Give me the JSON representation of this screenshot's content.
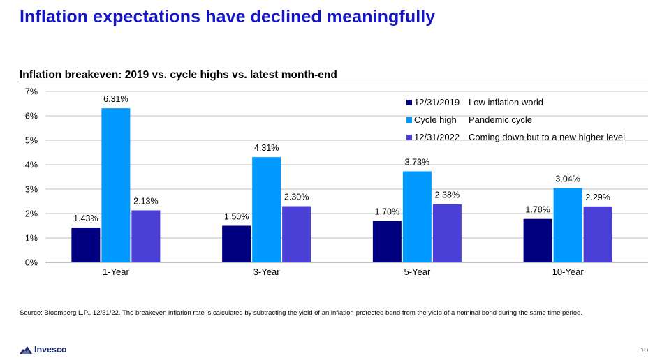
{
  "slide": {
    "title": "Inflation expectations have declined meaningfully",
    "source": "Source: Bloomberg L.P., 12/31/22. The breakeven inflation rate is calculated by subtracting the yield of an inflation-protected bond from the yield of a nominal bond during the same time period.",
    "logo_text": "Invesco",
    "page_number": "10"
  },
  "chart_data": {
    "type": "bar",
    "title": "Inflation breakeven: 2019 vs. cycle highs vs. latest month-end",
    "categories": [
      "1-Year",
      "3-Year",
      "5-Year",
      "10-Year"
    ],
    "series": [
      {
        "name": "12/31/2019",
        "description": "Low inflation world",
        "color": "#000080",
        "values": [
          1.43,
          1.5,
          1.7,
          1.78
        ],
        "labels": [
          "1.43%",
          "1.50%",
          "1.70%",
          "1.78%"
        ]
      },
      {
        "name": "Cycle high",
        "description": "Pandemic cycle",
        "color": "#0099ff",
        "values": [
          6.31,
          4.31,
          3.73,
          3.04
        ],
        "labels": [
          "6.31%",
          "4.31%",
          "3.73%",
          "3.04%"
        ]
      },
      {
        "name": "12/31/2022",
        "description": "Coming down but to a new higher level",
        "color": "#4a3fd6",
        "values": [
          2.13,
          2.3,
          2.38,
          2.29
        ],
        "labels": [
          "2.13%",
          "2.30%",
          "2.38%",
          "2.29%"
        ]
      }
    ],
    "ylim": [
      0,
      7
    ],
    "yticks": [
      0,
      1,
      2,
      3,
      4,
      5,
      6,
      7
    ],
    "ytick_labels": [
      "0%",
      "1%",
      "2%",
      "3%",
      "4%",
      "5%",
      "6%",
      "7%"
    ],
    "grid": true,
    "legend_position": "top-right"
  }
}
